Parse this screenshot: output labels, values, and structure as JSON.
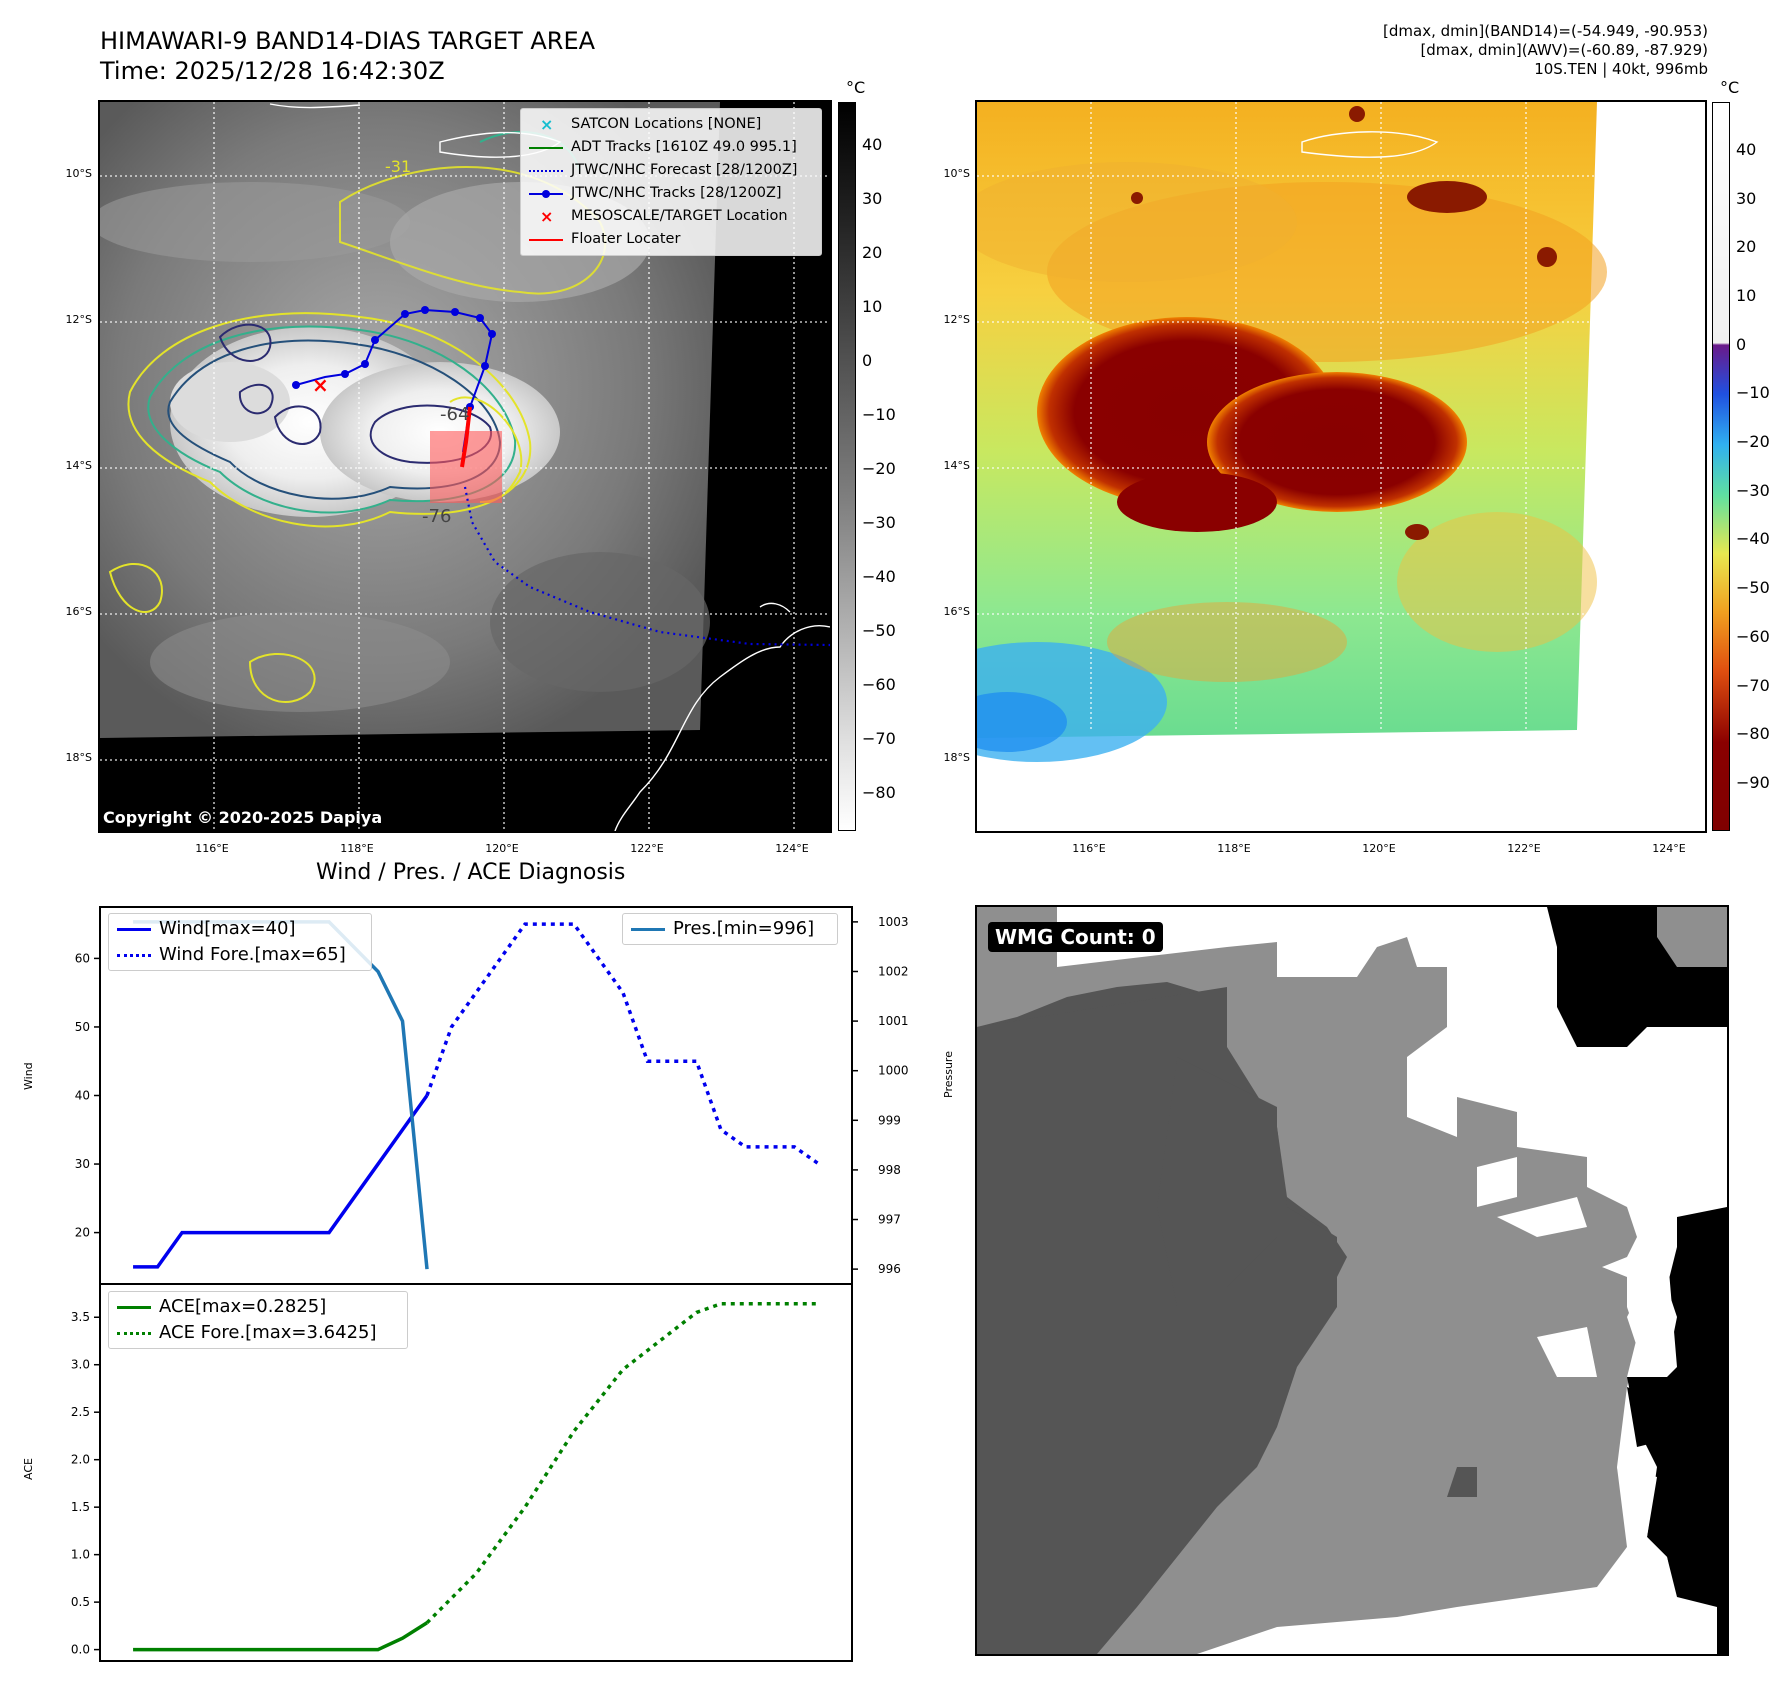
{
  "header": {
    "title_line1": "HIMAWARI-9 BAND14-DIAS TARGET AREA",
    "title_line2": "Time: 2025/12/28 16:42:30Z",
    "info_line1": "[dmax, dmin](BAND14)=(-54.949, -90.953)",
    "info_line2": "[dmax, dmin](AWV)=(-60.89, -87.929)",
    "info_line3": "10S.TEN | 40kt, 996mb"
  },
  "maps": {
    "lat_labels": [
      "10°S",
      "12°S",
      "14°S",
      "16°S",
      "18°S"
    ],
    "lon_labels": [
      "116°E",
      "118°E",
      "120°E",
      "122°E",
      "124°E"
    ],
    "copyright": "Copyright © 2020-2025 Dapiya",
    "contour_labels": [
      "-31",
      "-64",
      "-76"
    ],
    "unit": "°C",
    "ir_colorbar_ticks": [
      "40",
      "30",
      "20",
      "10",
      "0",
      "−10",
      "−20",
      "−30",
      "−40",
      "−50",
      "−60",
      "−70",
      "−80"
    ],
    "color_colorbar_ticks": [
      "40",
      "30",
      "20",
      "10",
      "0",
      "−10",
      "−20",
      "−30",
      "−40",
      "−50",
      "−60",
      "−70",
      "−80",
      "−90"
    ]
  },
  "map_legend": {
    "satcon": "SATCON Locations [NONE]",
    "adt": "ADT Tracks [1610Z 49.0 995.1]",
    "jtwc_forecast": "JTWC/NHC Forecast [28/1200Z]",
    "jtwc_tracks": "JTWC/NHC Tracks [28/1200Z]",
    "mesoscale": "MESOSCALE/TARGET Location",
    "floater": "Floater Locater"
  },
  "diagnosis": {
    "title": "Wind / Pres. / ACE Diagnosis",
    "wind_ylabel": "Wind",
    "pressure_ylabel": "Pressure",
    "ace_ylabel": "ACE",
    "legend_wind": "Wind[max=40]",
    "legend_wind_fore": "Wind Fore.[max=65]",
    "legend_pres": "Pres.[min=996]",
    "legend_ace": "ACE[max=0.2825]",
    "legend_ace_fore": "ACE Fore.[max=3.6425]",
    "wind_ticks": [
      "20",
      "30",
      "40",
      "50",
      "60"
    ],
    "pressure_ticks": [
      "996",
      "997",
      "998",
      "999",
      "1000",
      "1001",
      "1002",
      "1003"
    ],
    "ace_ticks": [
      "0.0",
      "0.5",
      "1.0",
      "1.5",
      "2.0",
      "2.5",
      "3.0",
      "3.5"
    ]
  },
  "wmg": {
    "badge": "WMG Count: 0"
  },
  "colors": {
    "wind": "#0000ee",
    "pressure": "#1f77b4",
    "ace": "#008000",
    "floater": "#ff0000"
  },
  "chart_data": [
    {
      "type": "line",
      "title": "Wind / Pres. / ACE Diagnosis",
      "ylabel": "Wind",
      "y2label": "Pressure",
      "ylim": [
        12.5,
        67.5
      ],
      "y2lim": [
        995.7,
        1003.3
      ],
      "series": [
        {
          "name": "Wind[max=40]",
          "axis": "left",
          "style": "solid",
          "x": [
            0,
            1,
            2,
            3,
            4,
            5,
            6,
            7,
            8,
            9,
            10,
            11,
            12
          ],
          "values": [
            15,
            15,
            20,
            20,
            20,
            20,
            20,
            20,
            20,
            25,
            30,
            35,
            40
          ]
        },
        {
          "name": "Wind Fore.[max=65]",
          "axis": "left",
          "style": "dotted",
          "x": [
            12,
            13,
            14,
            15,
            16,
            17,
            18,
            19,
            20,
            21,
            22,
            23,
            24,
            25,
            26,
            27,
            28
          ],
          "values": [
            40,
            50,
            55,
            60,
            65,
            65,
            65,
            60,
            55,
            45,
            45,
            45,
            35,
            32.5,
            32.5,
            32.5,
            30
          ]
        },
        {
          "name": "Pres.[min=996]",
          "axis": "right",
          "style": "solid",
          "x": [
            0,
            1,
            2,
            3,
            4,
            5,
            6,
            7,
            8,
            9,
            10,
            11,
            12
          ],
          "values": [
            1003,
            1003,
            1003,
            1003,
            1003,
            1003,
            1003,
            1003,
            1003,
            1002.5,
            1002,
            1001,
            996
          ]
        }
      ]
    },
    {
      "type": "line",
      "ylabel": "ACE",
      "ylim": [
        -0.12,
        3.85
      ],
      "series": [
        {
          "name": "ACE[max=0.2825]",
          "style": "solid",
          "x": [
            0,
            1,
            2,
            3,
            4,
            5,
            6,
            7,
            8,
            9,
            10,
            11,
            12
          ],
          "values": [
            0,
            0,
            0,
            0,
            0,
            0,
            0,
            0,
            0,
            0,
            0,
            0.12,
            0.2825
          ]
        },
        {
          "name": "ACE Fore.[max=3.6425]",
          "style": "dotted",
          "x": [
            12,
            14,
            16,
            18,
            20,
            21,
            22,
            23,
            24,
            25,
            26,
            28
          ],
          "values": [
            0.2825,
            0.8,
            1.5,
            2.3,
            2.95,
            3.15,
            3.35,
            3.55,
            3.6425,
            3.6425,
            3.6425,
            3.6425
          ]
        }
      ]
    }
  ]
}
